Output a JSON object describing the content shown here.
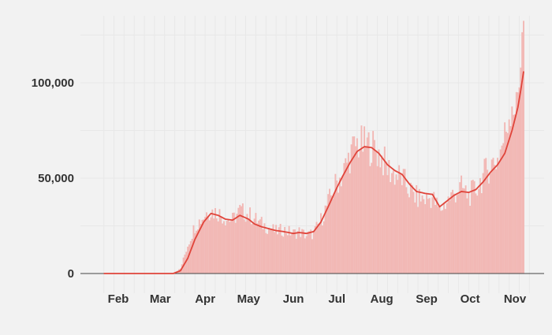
{
  "chart_data": {
    "type": "bar",
    "title": "",
    "xlabel": "",
    "ylabel": "",
    "ylim": [
      0,
      135000
    ],
    "y_ticks": [
      0,
      50000,
      100000
    ],
    "y_tick_labels": [
      "0",
      "50,000",
      "100,000"
    ],
    "x_tick_labels": [
      "Feb",
      "Mar",
      "Apr",
      "May",
      "Jun",
      "Jul",
      "Aug",
      "Sep",
      "Oct",
      "Nov"
    ],
    "x_tick_dates": [
      "2020-02-01",
      "2020-03-01",
      "2020-04-01",
      "2020-05-01",
      "2020-06-01",
      "2020-07-01",
      "2020-08-01",
      "2020-09-01",
      "2020-10-01",
      "2020-11-01"
    ],
    "date_range": [
      "2020-01-22",
      "2020-11-07"
    ],
    "grid": true,
    "legend": "none",
    "series": [
      {
        "kind": "bar",
        "color": "#f2b8b5",
        "anchors": [
          [
            "2020-01-22",
            0
          ],
          [
            "2020-03-01",
            0
          ],
          [
            "2020-03-10",
            300
          ],
          [
            "2020-03-15",
            2500
          ],
          [
            "2020-03-20",
            15000
          ],
          [
            "2020-03-25",
            25000
          ],
          [
            "2020-03-31",
            30000
          ],
          [
            "2020-04-03",
            33000
          ],
          [
            "2020-04-10",
            32000
          ],
          [
            "2020-04-15",
            29000
          ],
          [
            "2020-04-20",
            28000
          ],
          [
            "2020-04-25",
            33000
          ],
          [
            "2020-05-01",
            31000
          ],
          [
            "2020-05-10",
            26000
          ],
          [
            "2020-05-15",
            24000
          ],
          [
            "2020-05-20",
            22000
          ],
          [
            "2020-05-25",
            23000
          ],
          [
            "2020-06-01",
            21000
          ],
          [
            "2020-06-05",
            22000
          ],
          [
            "2020-06-10",
            20000
          ],
          [
            "2020-06-15",
            21000
          ],
          [
            "2020-06-20",
            28000
          ],
          [
            "2020-06-25",
            37000
          ],
          [
            "2020-07-01",
            48000
          ],
          [
            "2020-07-05",
            52000
          ],
          [
            "2020-07-10",
            62000
          ],
          [
            "2020-07-15",
            68000
          ],
          [
            "2020-07-20",
            67000
          ],
          [
            "2020-07-25",
            67000
          ],
          [
            "2020-07-31",
            62000
          ],
          [
            "2020-08-05",
            55000
          ],
          [
            "2020-08-10",
            52000
          ],
          [
            "2020-08-15",
            50000
          ],
          [
            "2020-08-20",
            44000
          ],
          [
            "2020-08-25",
            40000
          ],
          [
            "2020-08-31",
            39000
          ],
          [
            "2020-09-05",
            40000
          ],
          [
            "2020-09-10",
            33000
          ],
          [
            "2020-09-15",
            38000
          ],
          [
            "2020-09-20",
            42000
          ],
          [
            "2020-09-25",
            45000
          ],
          [
            "2020-09-30",
            41000
          ],
          [
            "2020-10-05",
            44000
          ],
          [
            "2020-10-10",
            51000
          ],
          [
            "2020-10-15",
            57000
          ],
          [
            "2020-10-20",
            60000
          ],
          [
            "2020-10-25",
            72000
          ],
          [
            "2020-10-30",
            92000
          ],
          [
            "2020-11-02",
            85000
          ],
          [
            "2020-11-04",
            103000
          ],
          [
            "2020-11-05",
            118000
          ],
          [
            "2020-11-06",
            132000
          ],
          [
            "2020-11-07",
            125000
          ]
        ]
      },
      {
        "kind": "line",
        "color": "#e0443a",
        "anchors": [
          [
            "2020-01-22",
            0
          ],
          [
            "2020-03-10",
            0
          ],
          [
            "2020-03-15",
            1500
          ],
          [
            "2020-03-20",
            8000
          ],
          [
            "2020-03-25",
            18000
          ],
          [
            "2020-03-31",
            27000
          ],
          [
            "2020-04-05",
            31500
          ],
          [
            "2020-04-10",
            30500
          ],
          [
            "2020-04-15",
            28500
          ],
          [
            "2020-04-20",
            28000
          ],
          [
            "2020-04-25",
            30500
          ],
          [
            "2020-05-01",
            28500
          ],
          [
            "2020-05-05",
            26000
          ],
          [
            "2020-05-10",
            24500
          ],
          [
            "2020-05-15",
            23500
          ],
          [
            "2020-05-20",
            22500
          ],
          [
            "2020-05-25",
            22000
          ],
          [
            "2020-06-01",
            21000
          ],
          [
            "2020-06-05",
            21500
          ],
          [
            "2020-06-10",
            21000
          ],
          [
            "2020-06-15",
            22000
          ],
          [
            "2020-06-20",
            27000
          ],
          [
            "2020-06-25",
            35000
          ],
          [
            "2020-07-01",
            45000
          ],
          [
            "2020-07-05",
            51000
          ],
          [
            "2020-07-10",
            58000
          ],
          [
            "2020-07-15",
            64000
          ],
          [
            "2020-07-20",
            66500
          ],
          [
            "2020-07-25",
            66000
          ],
          [
            "2020-07-30",
            63000
          ],
          [
            "2020-08-05",
            57000
          ],
          [
            "2020-08-10",
            54000
          ],
          [
            "2020-08-15",
            52000
          ],
          [
            "2020-08-20",
            47000
          ],
          [
            "2020-08-25",
            43000
          ],
          [
            "2020-08-31",
            42000
          ],
          [
            "2020-09-05",
            41500
          ],
          [
            "2020-09-10",
            35000
          ],
          [
            "2020-09-15",
            38000
          ],
          [
            "2020-09-20",
            41000
          ],
          [
            "2020-09-25",
            43000
          ],
          [
            "2020-09-30",
            42500
          ],
          [
            "2020-10-05",
            44000
          ],
          [
            "2020-10-10",
            48000
          ],
          [
            "2020-10-15",
            53000
          ],
          [
            "2020-10-20",
            57000
          ],
          [
            "2020-10-25",
            63000
          ],
          [
            "2020-10-30",
            75000
          ],
          [
            "2020-11-03",
            87000
          ],
          [
            "2020-11-05",
            96000
          ],
          [
            "2020-11-07",
            106000
          ]
        ]
      }
    ]
  }
}
